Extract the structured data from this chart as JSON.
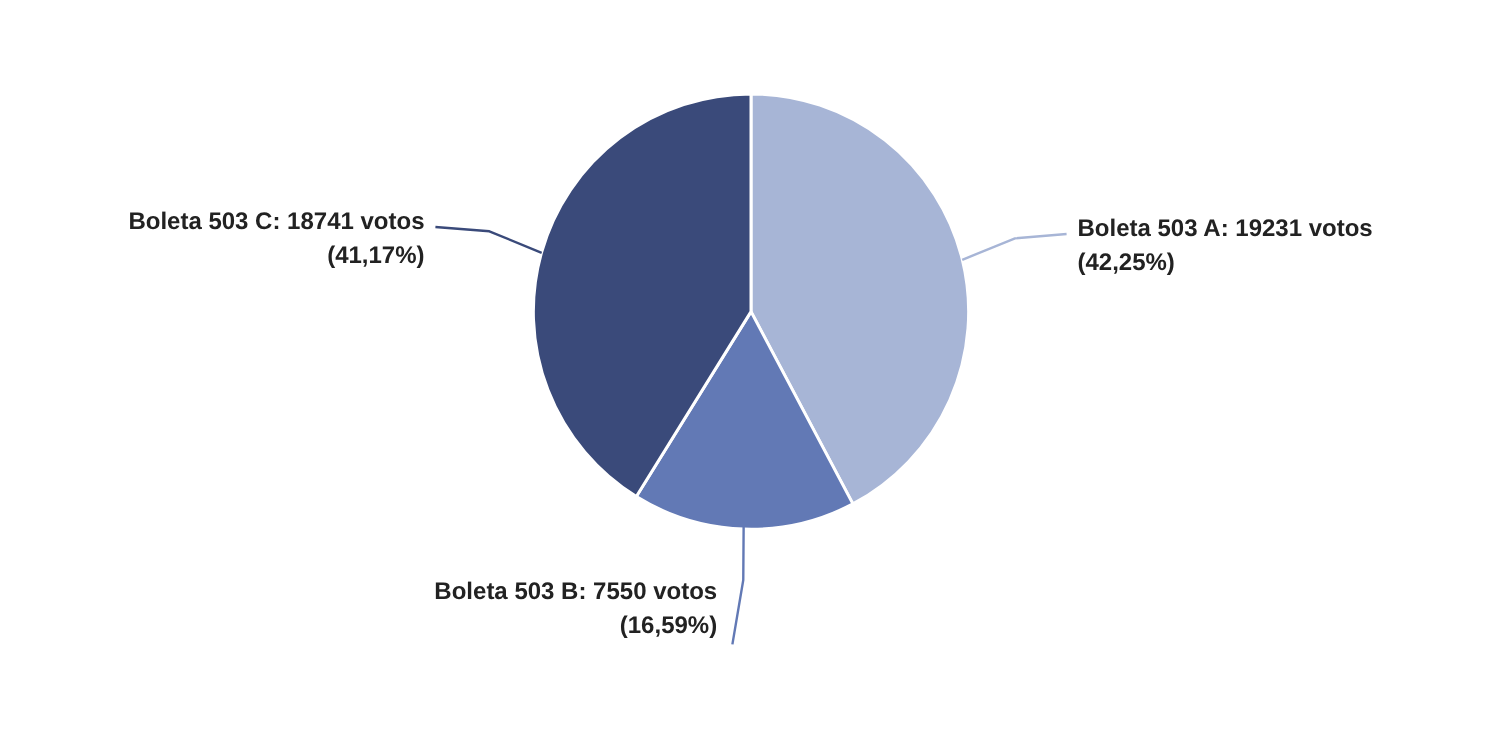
{
  "chart_data": {
    "type": "pie",
    "categories": [
      "Boleta 503 A",
      "Boleta 503 B",
      "Boleta 503 C"
    ],
    "values": [
      19231,
      7550,
      18741
    ],
    "value_labels": [
      "19231 votos\n(42,25%)",
      "7550 votos\n(16,59%)",
      "18741 votos\n(41,17%)"
    ],
    "colors": [
      "#a7b5d6",
      "#6279b5",
      "#3a4a7a"
    ]
  }
}
